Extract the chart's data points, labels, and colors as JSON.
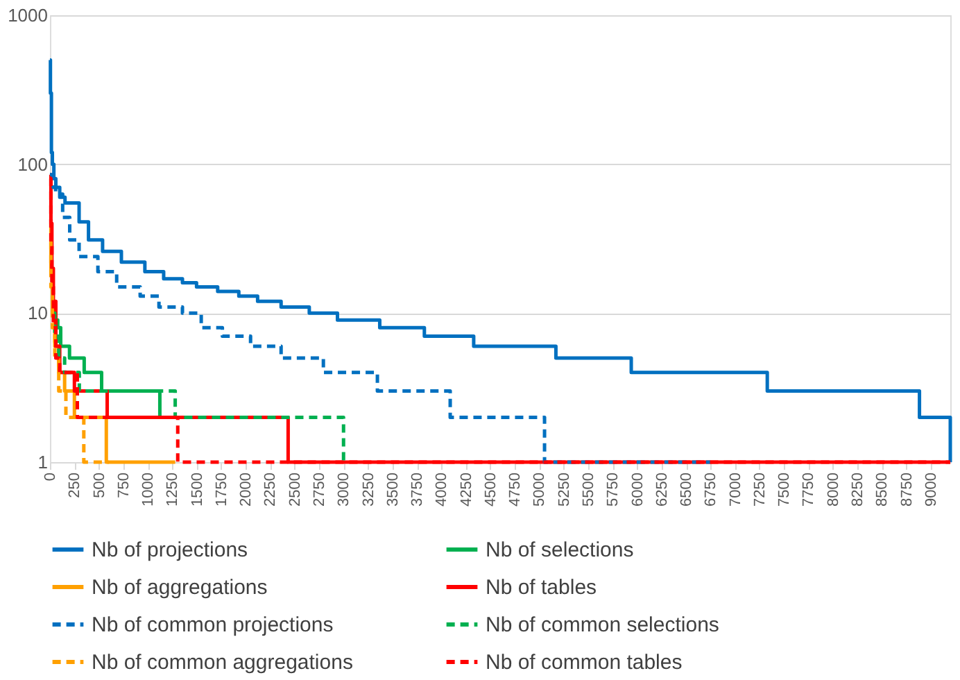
{
  "chart_data": {
    "type": "step",
    "xlim": [
      0,
      9200
    ],
    "xticks": [
      0,
      250,
      500,
      750,
      1000,
      1250,
      1500,
      1750,
      2000,
      2250,
      2500,
      2750,
      3000,
      3250,
      3500,
      3750,
      4000,
      4250,
      4500,
      4750,
      5000,
      5250,
      5500,
      5750,
      6000,
      6250,
      6500,
      6750,
      7000,
      7250,
      7500,
      7750,
      8000,
      8250,
      8500,
      8750,
      9000
    ],
    "ylim": [
      1,
      1000
    ],
    "yticks": [
      1,
      10,
      100,
      1000
    ],
    "log": "y",
    "grid": "y",
    "legend": "bottom",
    "series": [
      {
        "name": "Nb of projections",
        "color": "#0070c0",
        "line_style": "solid",
        "x": [
          0,
          5,
          15,
          25,
          40,
          60,
          100,
          154,
          298,
          394,
          538,
          730,
          970,
          1162,
          1354,
          1498,
          1714,
          1930,
          2122,
          2362,
          2650,
          2938,
          3370,
          3826,
          4330,
          5170,
          5940,
          7330,
          8885,
          9200
        ],
        "values": [
          500,
          300,
          120,
          100,
          80,
          70,
          60,
          55,
          41,
          31,
          26,
          22,
          19,
          17,
          16,
          15,
          14,
          13,
          12,
          11,
          10,
          9,
          8,
          7,
          6,
          5,
          4,
          3,
          2,
          1
        ]
      },
      {
        "name": "Nb of selections",
        "color": "#00b050",
        "line_style": "solid",
        "x": [
          50,
          80,
          110,
          200,
          350,
          528,
          1123,
          1280
        ],
        "values": [
          9,
          8,
          6,
          5,
          4,
          3,
          2,
          2
        ]
      },
      {
        "name": "Nb of aggregations",
        "color": "#ffa000",
        "line_style": "solid",
        "x": [
          0,
          10,
          25,
          50,
          90,
          150,
          250,
          576,
          1280
        ],
        "values": [
          40,
          20,
          10,
          6,
          4,
          3,
          2,
          1,
          1
        ]
      },
      {
        "name": "Nb of tables",
        "color": "#ff0000",
        "line_style": "solid",
        "x": [
          0,
          10,
          20,
          35,
          60,
          100,
          250,
          585,
          2434,
          9200
        ],
        "values": [
          85,
          40,
          20,
          12,
          6,
          4,
          3,
          2,
          1,
          1
        ]
      },
      {
        "name": "Nb of common projections",
        "color": "#0070c0",
        "line_style": "dashed",
        "x": [
          0,
          34,
          58,
          130,
          202,
          298,
          490,
          682,
          922,
          1114,
          1354,
          1546,
          1762,
          2050,
          2362,
          2794,
          3346,
          4090,
          5054,
          6750
        ],
        "values": [
          85,
          70,
          63,
          44,
          31,
          24,
          19,
          15,
          13,
          11,
          10,
          8,
          7,
          6,
          5,
          4,
          3,
          2,
          1,
          1
        ]
      },
      {
        "name": "Nb of common selections",
        "color": "#00b050",
        "line_style": "dashed",
        "x": [
          25,
          50,
          90,
          150,
          300,
          1280,
          3000
        ],
        "values": [
          10,
          7,
          5,
          4,
          3,
          2,
          1
        ]
      },
      {
        "name": "Nb of common aggregations",
        "color": "#ffa000",
        "line_style": "dashed",
        "x": [
          0,
          10,
          25,
          50,
          90,
          163,
          346,
          600
        ],
        "values": [
          30,
          15,
          8,
          5,
          3,
          2,
          1,
          1
        ]
      },
      {
        "name": "Nb of common tables",
        "color": "#ff0000",
        "line_style": "dashed",
        "x": [
          0,
          10,
          20,
          35,
          60,
          100,
          280,
          1306,
          9200
        ],
        "values": [
          80,
          30,
          15,
          8,
          5,
          4,
          2,
          1,
          1
        ]
      }
    ]
  }
}
